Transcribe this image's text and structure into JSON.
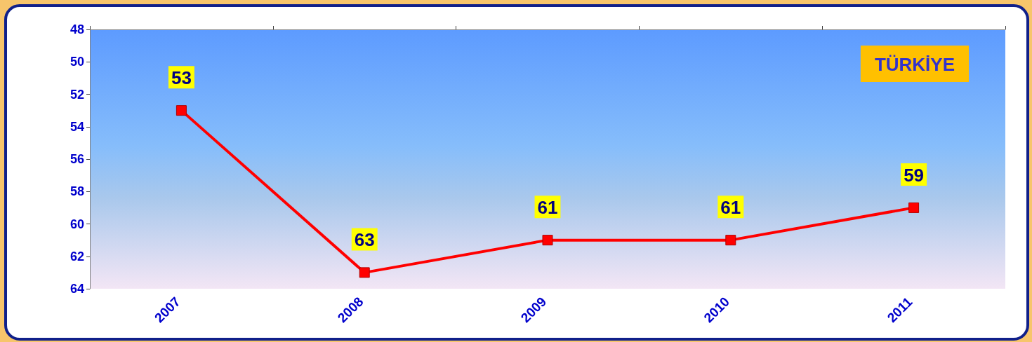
{
  "chart_data": {
    "type": "line",
    "categories": [
      "2007",
      "2008",
      "2009",
      "2010",
      "2011"
    ],
    "series": [
      {
        "color": "#ff0000",
        "values": [
          53,
          63,
          61,
          61,
          59
        ]
      }
    ],
    "ylim": [
      64,
      48
    ],
    "yticks": [
      48,
      50,
      52,
      54,
      56,
      58,
      60,
      62,
      64
    ],
    "annotations": [
      "TÜRKİYE"
    ],
    "data_labels": true,
    "marker": "square",
    "line_style": "solid",
    "grid": false
  }
}
